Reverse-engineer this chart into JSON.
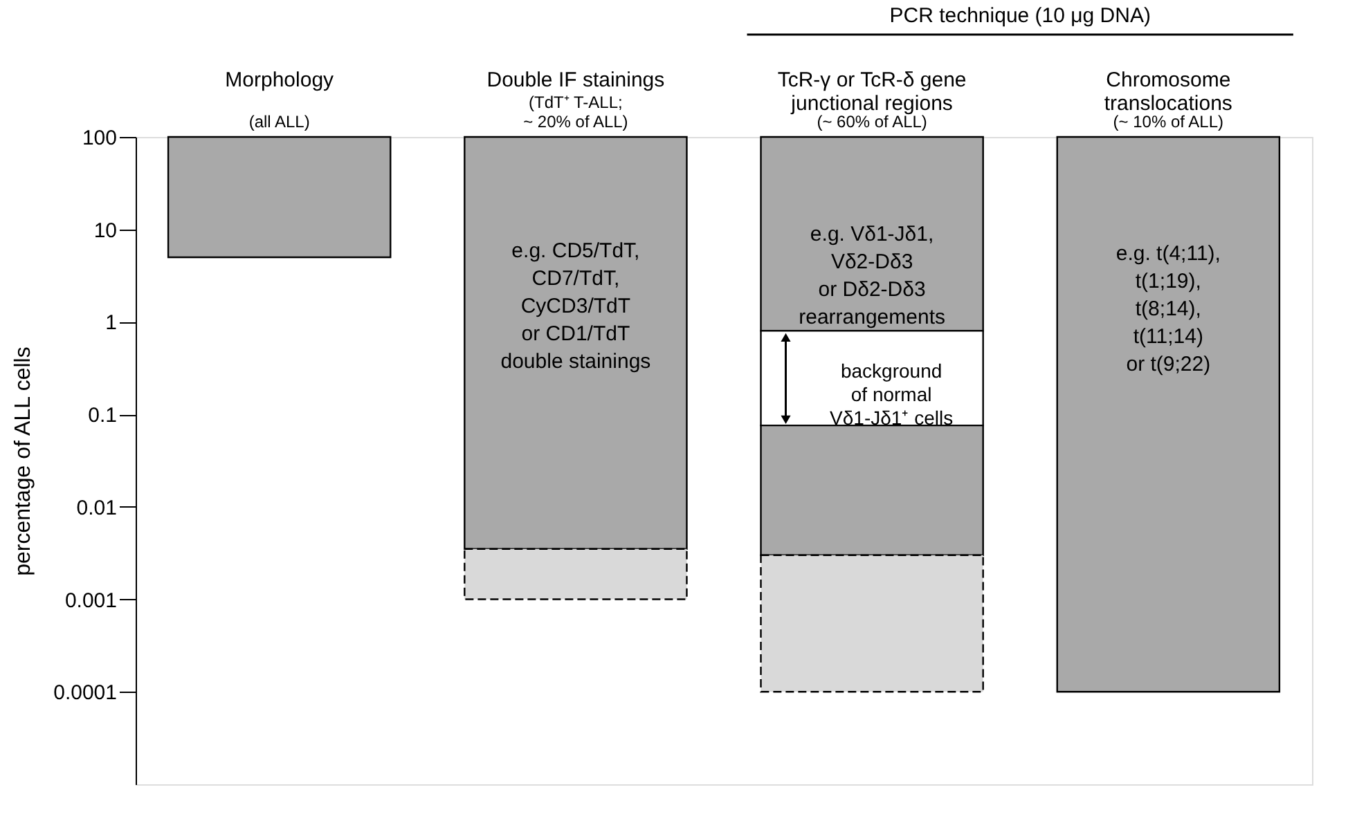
{
  "chart_data": {
    "type": "bar",
    "categories": [
      "Morphology",
      "Double IF stainings",
      "TcR-γ or TcR-δ gene\njunctional regions",
      "Chromosome\ntranslocations"
    ],
    "series": [
      {
        "color": "#a9a9a9",
        "base": [
          5,
          0.0035,
          0.8,
          0.0001
        ],
        "values": [
          95,
          99.9965,
          99.2,
          99.9999
        ]
      },
      {
        "color": "#ffffff",
        "base": [
          null,
          null,
          0.076,
          null
        ],
        "values": [
          null,
          null,
          0.724,
          null
        ]
      },
      {
        "color": "#a9a9a9",
        "base": [
          null,
          null,
          0.003,
          null
        ],
        "values": [
          null,
          null,
          0.073,
          null
        ]
      },
      {
        "color": "#d9d9d9",
        "line_style": "dashed",
        "base": [
          null,
          0.001,
          0.0001,
          null
        ],
        "values": [
          null,
          0.0025,
          0.0029,
          null
        ]
      }
    ],
    "ylabel": "percentage of ALL cells",
    "log": true,
    "ylim": [
      1e-05,
      100
    ],
    "yticks": [
      100,
      10,
      1,
      0.1,
      0.01,
      0.001,
      0.0001
    ],
    "grid": false,
    "annotations": [
      "PCR technique (10 μg DNA)",
      "(all ALL)",
      "(TdT⁺ T-ALL;\n~ 20% of ALL)",
      "(~ 60% of ALL)",
      "(~ 10% of ALL)",
      "e.g. CD5/TdT,\nCD7/TdT,\nCyCD3/TdT\nor CD1/TdT\ndouble stainings",
      "e.g. Vδ1-Jδ1,\nVδ2-Dδ3\nor Dδ2-Dδ3\nrearrangements",
      "background\nof normal\nVδ1-Jδ1⁺ cells",
      "e.g. t(4;11),\nt(1;19),\nt(8;14),\nt(11;14)\nor t(9;22)"
    ]
  }
}
